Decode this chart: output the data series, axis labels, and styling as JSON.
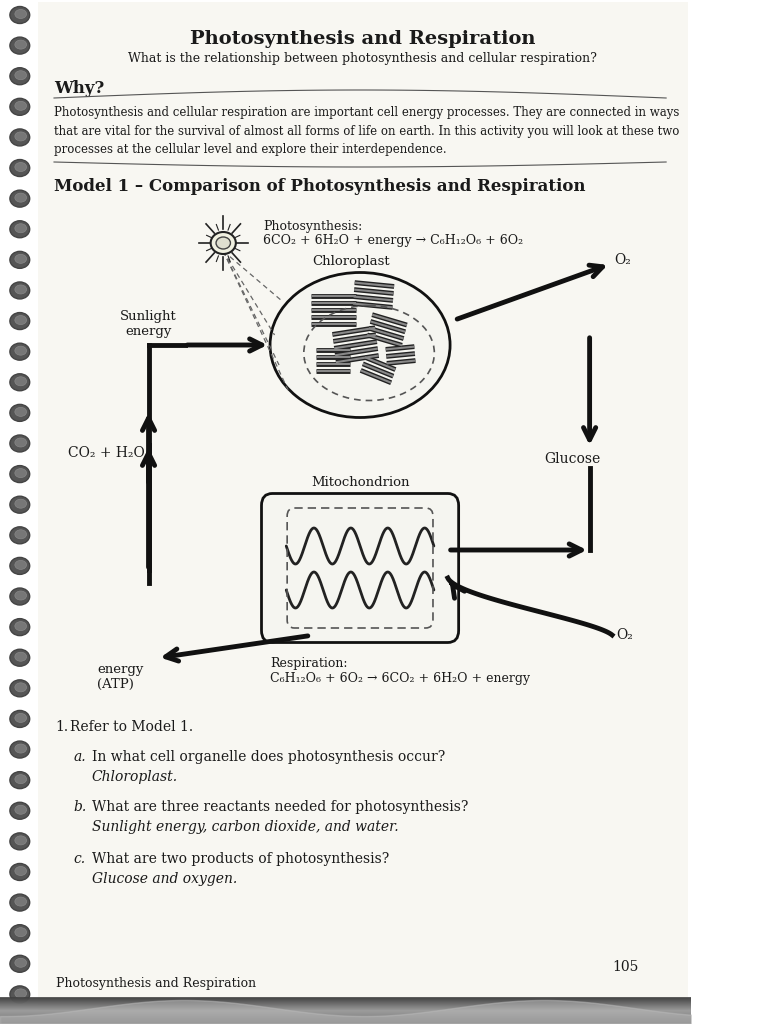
{
  "title": "Photosynthesis and Respiration",
  "subtitle": "What is the relationship between photosynthesis and cellular respiration?",
  "why_header": "Why?",
  "why_text": "Photosynthesis and cellular respiration are important cell energy processes. They are connected in ways\nthat are vital for the survival of almost all forms of life on earth. In this activity you will look at these two\nprocesses at the cellular level and explore their interdependence.",
  "model_header": "Model 1 – Comparison of Photosynthesis and Respiration",
  "photosynthesis_label": "Photosynthesis:",
  "photosynthesis_eq": "6CO₂ + 6H₂O + energy → C₆H₁₂O₆ + 6O₂",
  "respiration_label": "Respiration:",
  "respiration_eq": "C₆H₁₂O₆ + 6O₂ → 6CO₂ + 6H₂O + energy",
  "chloroplast_label": "Chloroplast",
  "mitochondrion_label": "Mitochondrion",
  "sunlight_label": "Sunlight\nenergy",
  "co2_h2o_label": "CO₂ + H₂O",
  "glucose_label": "Glucose",
  "o2_label_top": "O₂",
  "o2_label_bottom": "O₂",
  "energy_label": "energy\n(ATP)",
  "q1_num": "1.",
  "q1_text": "Refer to Model 1.",
  "qa_label": "a.",
  "qa_text": "In what cell organelle does photosynthesis occur?",
  "qa_answer": "Chloroplast.",
  "qb_label": "b.",
  "qb_text": "What are three reactants needed for photosynthesis?",
  "qb_answer": "Sunlight energy, carbon dioxide, and water.",
  "qc_label": "c.",
  "qc_text": "What are two products of photosynthesis?",
  "qc_answer": "Glucose and oxygen.",
  "page_num": "105",
  "footer": "Photosynthesis and Respiration",
  "bg_color": "#ffffff",
  "text_color": "#1a1a1a"
}
